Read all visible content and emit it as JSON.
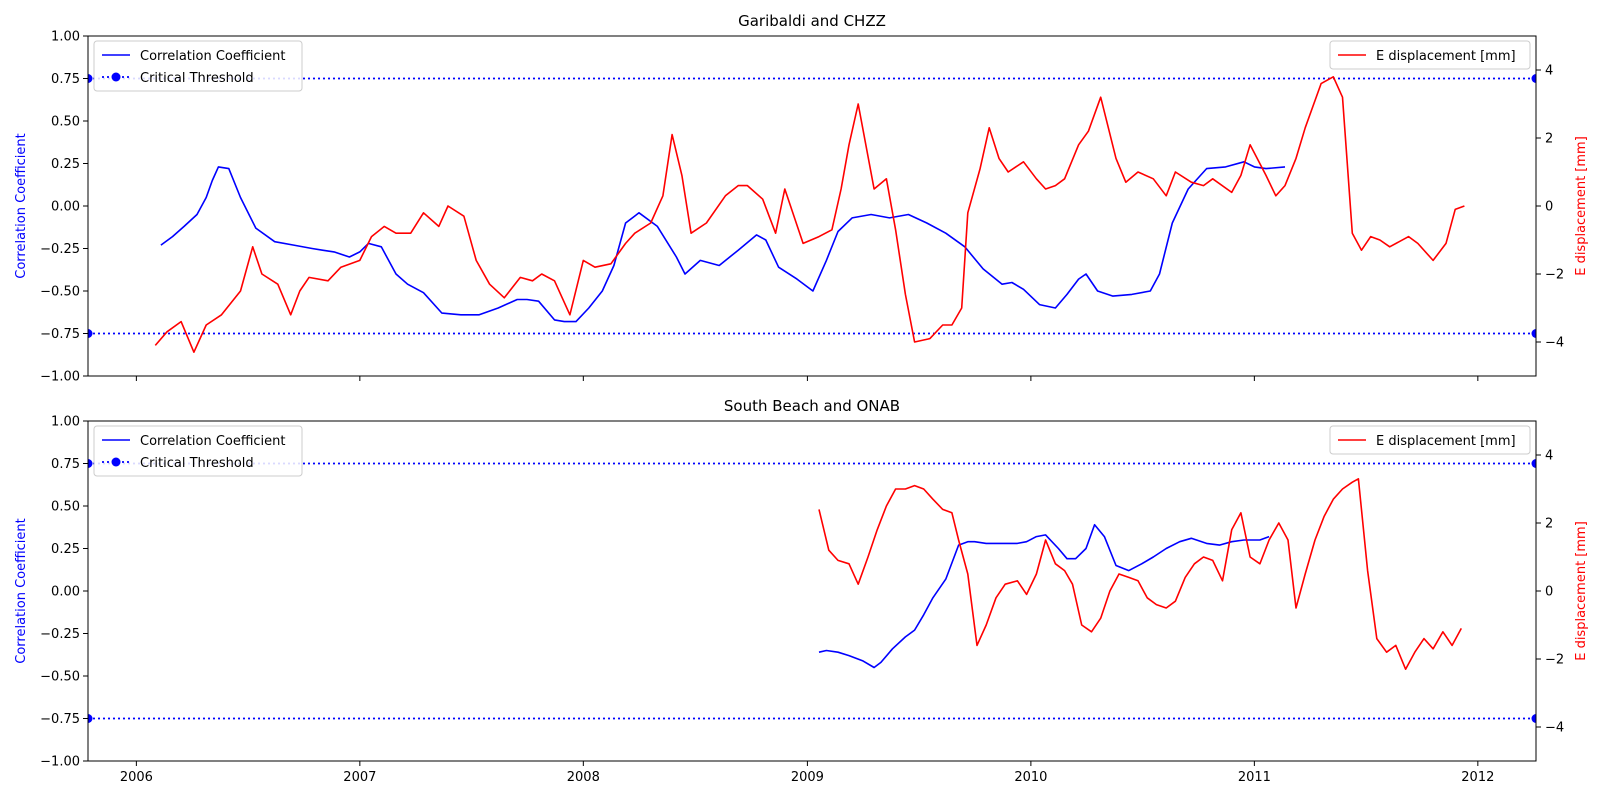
{
  "colors": {
    "correlation": "#0000ff",
    "displacement": "#ff0000",
    "threshold": "#0000ff",
    "axes": "#000000",
    "legend_border": "#cccccc"
  },
  "x_ticks": [
    {
      "date": "2006-01-01",
      "label": "2006"
    },
    {
      "date": "2007-01-01",
      "label": "2007"
    },
    {
      "date": "2008-01-01",
      "label": "2008"
    },
    {
      "date": "2009-01-01",
      "label": "2009"
    },
    {
      "date": "2010-01-01",
      "label": "2010"
    },
    {
      "date": "2011-01-01",
      "label": "2011"
    },
    {
      "date": "2012-01-01",
      "label": "2012"
    }
  ],
  "legend": {
    "left": [
      "Correlation Coefficient",
      "Critical Threshold"
    ],
    "right": [
      "E displacement [mm]"
    ]
  },
  "chart_data": [
    {
      "type": "line",
      "title": "Garibaldi and CHZZ",
      "xlim": [
        "2005-10-14",
        "2012-04-05"
      ],
      "ylabel_left": "Correlation Coefficient",
      "ylabel_right": "E displacement [mm]",
      "ylim_left": [
        -1.0,
        1.0
      ],
      "ylim_right": [
        -5,
        5
      ],
      "yticks_left": [
        "1.00",
        "0.75",
        "0.50",
        "0.25",
        "0.00",
        "−0.25",
        "−0.50",
        "−0.75",
        "−1.00"
      ],
      "yticks_right": [
        "4",
        "2",
        "0",
        "−2",
        "−4"
      ],
      "legend_left_position": "upper-left",
      "legend_right_position": "upper-right",
      "thresholds": [
        0.75,
        -0.75
      ],
      "series": [
        {
          "name": "Correlation Coefficient",
          "axis": "left",
          "x": [
            "2006-02-10",
            "2006-03-01",
            "2006-03-20",
            "2006-04-10",
            "2006-04-25",
            "2006-05-05",
            "2006-05-15",
            "2006-06-01",
            "2006-06-20",
            "2006-07-15",
            "2006-08-15",
            "2006-09-15",
            "2006-10-15",
            "2006-11-01",
            "2006-11-20",
            "2006-12-15",
            "2007-01-01",
            "2007-01-15",
            "2007-02-05",
            "2007-03-01",
            "2007-03-20",
            "2007-04-15",
            "2007-05-15",
            "2007-06-15",
            "2007-07-15",
            "2007-08-15",
            "2007-09-15",
            "2007-10-01",
            "2007-10-20",
            "2007-11-15",
            "2007-12-01",
            "2007-12-20",
            "2008-01-10",
            "2008-02-01",
            "2008-02-20",
            "2008-03-10",
            "2008-04-01",
            "2008-05-01",
            "2008-06-01",
            "2008-06-15",
            "2008-07-10",
            "2008-08-10",
            "2008-09-10",
            "2008-10-10",
            "2008-10-25",
            "2008-11-15",
            "2008-12-15",
            "2009-01-10",
            "2009-02-01",
            "2009-02-20",
            "2009-03-15",
            "2009-04-15",
            "2009-05-15",
            "2009-06-15",
            "2009-07-15",
            "2009-08-15",
            "2009-09-15",
            "2009-10-15",
            "2009-11-15",
            "2009-12-01",
            "2009-12-20",
            "2010-01-15",
            "2010-02-10",
            "2010-03-01",
            "2010-03-20",
            "2010-04-01",
            "2010-04-20",
            "2010-05-15",
            "2010-06-15",
            "2010-07-15",
            "2010-07-30",
            "2010-08-20",
            "2010-09-15",
            "2010-10-15",
            "2010-11-15",
            "2010-12-15",
            "2011-01-01",
            "2011-01-20",
            "2011-02-20"
          ],
          "y": [
            -0.23,
            -0.18,
            -0.12,
            -0.05,
            0.05,
            0.15,
            0.23,
            0.22,
            0.05,
            -0.13,
            -0.21,
            -0.23,
            -0.25,
            -0.26,
            -0.27,
            -0.3,
            -0.27,
            -0.22,
            -0.24,
            -0.4,
            -0.46,
            -0.51,
            -0.63,
            -0.64,
            -0.64,
            -0.6,
            -0.55,
            -0.55,
            -0.56,
            -0.67,
            -0.68,
            -0.68,
            -0.6,
            -0.5,
            -0.35,
            -0.1,
            -0.04,
            -0.12,
            -0.3,
            -0.4,
            -0.32,
            -0.35,
            -0.26,
            -0.17,
            -0.2,
            -0.36,
            -0.43,
            -0.5,
            -0.32,
            -0.15,
            -0.07,
            -0.05,
            -0.07,
            -0.05,
            -0.1,
            -0.16,
            -0.24,
            -0.37,
            -0.46,
            -0.45,
            -0.49,
            -0.58,
            -0.6,
            -0.52,
            -0.43,
            -0.4,
            -0.5,
            -0.53,
            -0.52,
            -0.5,
            -0.4,
            -0.1,
            0.1,
            0.22,
            0.23,
            0.26,
            0.23,
            0.22,
            0.23
          ]
        },
        {
          "name": "E displacement [mm]",
          "axis": "right",
          "x": [
            "2006-02-01",
            "2006-02-20",
            "2006-03-15",
            "2006-04-05",
            "2006-04-25",
            "2006-05-20",
            "2006-06-20",
            "2006-07-10",
            "2006-07-25",
            "2006-08-20",
            "2006-09-10",
            "2006-09-25",
            "2006-10-10",
            "2006-11-10",
            "2006-12-01",
            "2007-01-01",
            "2007-01-20",
            "2007-02-10",
            "2007-03-01",
            "2007-03-25",
            "2007-04-15",
            "2007-05-10",
            "2007-05-25",
            "2007-06-20",
            "2007-07-10",
            "2007-08-01",
            "2007-08-25",
            "2007-09-20",
            "2007-10-10",
            "2007-10-25",
            "2007-11-15",
            "2007-12-10",
            "2008-01-01",
            "2008-01-20",
            "2008-02-15",
            "2008-03-10",
            "2008-03-25",
            "2008-04-20",
            "2008-05-10",
            "2008-05-25",
            "2008-06-10",
            "2008-06-25",
            "2008-07-20",
            "2008-08-20",
            "2008-09-10",
            "2008-09-25",
            "2008-10-20",
            "2008-11-10",
            "2008-11-25",
            "2008-12-25",
            "2009-01-20",
            "2009-02-10",
            "2009-02-25",
            "2009-03-10",
            "2009-03-25",
            "2009-04-20",
            "2009-05-10",
            "2009-05-25",
            "2009-06-10",
            "2009-06-25",
            "2009-07-20",
            "2009-08-10",
            "2009-08-25",
            "2009-09-10",
            "2009-09-20",
            "2009-10-10",
            "2009-10-25",
            "2009-11-10",
            "2009-11-25",
            "2009-12-20",
            "2010-01-10",
            "2010-01-25",
            "2010-02-10",
            "2010-02-25",
            "2010-03-20",
            "2010-04-05",
            "2010-04-25",
            "2010-05-20",
            "2010-06-05",
            "2010-06-25",
            "2010-07-20",
            "2010-08-10",
            "2010-08-25",
            "2010-09-20",
            "2010-10-10",
            "2010-10-25",
            "2010-11-25",
            "2010-12-10",
            "2010-12-25",
            "2011-01-20",
            "2011-02-05",
            "2011-02-20",
            "2011-03-10",
            "2011-03-25",
            "2011-04-20",
            "2011-05-10",
            "2011-05-25",
            "2011-06-10",
            "2011-06-25",
            "2011-07-10",
            "2011-07-25",
            "2011-08-10",
            "2011-09-10",
            "2011-09-25",
            "2011-10-20",
            "2011-11-10",
            "2011-11-25",
            "2011-12-10"
          ],
          "y": [
            -4.1,
            -3.7,
            -3.4,
            -4.3,
            -3.5,
            -3.2,
            -2.5,
            -1.2,
            -2.0,
            -2.3,
            -3.2,
            -2.5,
            -2.1,
            -2.2,
            -1.8,
            -1.6,
            -0.9,
            -0.6,
            -0.8,
            -0.8,
            -0.2,
            -0.6,
            0.0,
            -0.3,
            -1.6,
            -2.3,
            -2.7,
            -2.1,
            -2.2,
            -2.0,
            -2.2,
            -3.2,
            -1.6,
            -1.8,
            -1.7,
            -1.1,
            -0.8,
            -0.5,
            0.3,
            2.1,
            0.9,
            -0.8,
            -0.5,
            0.3,
            0.6,
            0.6,
            0.2,
            -0.8,
            0.5,
            -1.1,
            -0.9,
            -0.7,
            0.5,
            1.8,
            3.0,
            0.5,
            0.8,
            -0.7,
            -2.6,
            -4.0,
            -3.9,
            -3.5,
            -3.5,
            -3.0,
            -0.2,
            1.1,
            2.3,
            1.4,
            1.0,
            1.3,
            0.8,
            0.5,
            0.6,
            0.8,
            1.8,
            2.2,
            3.2,
            1.4,
            0.7,
            1.0,
            0.8,
            0.3,
            1.0,
            0.7,
            0.6,
            0.8,
            0.4,
            0.9,
            1.8,
            0.9,
            0.3,
            0.6,
            1.4,
            2.3,
            3.6,
            3.8,
            3.2,
            -0.8,
            -1.3,
            -0.9,
            -1.0,
            -1.2,
            -0.9,
            -1.1,
            -1.6,
            -1.1,
            -0.1,
            0.0
          ]
        }
      ]
    },
    {
      "type": "line",
      "title": "South Beach and ONAB",
      "xlim": [
        "2005-10-14",
        "2012-04-05"
      ],
      "ylabel_left": "Correlation Coefficient",
      "ylabel_right": "E displacement [mm]",
      "ylim_left": [
        -1.0,
        1.0
      ],
      "ylim_right": [
        -5,
        5
      ],
      "yticks_left": [
        "1.00",
        "0.75",
        "0.50",
        "0.25",
        "0.00",
        "−0.25",
        "−0.50",
        "−0.75",
        "−1.00"
      ],
      "yticks_right": [
        "4",
        "2",
        "0",
        "−2",
        "−4"
      ],
      "legend_left_position": "upper-left",
      "legend_right_position": "upper-right",
      "thresholds": [
        0.75,
        -0.75
      ],
      "series": [
        {
          "name": "Correlation Coefficient",
          "axis": "left",
          "x": [
            "2009-01-20",
            "2009-02-01",
            "2009-02-20",
            "2009-03-10",
            "2009-04-01",
            "2009-04-20",
            "2009-05-01",
            "2009-05-20",
            "2009-06-10",
            "2009-06-25",
            "2009-07-10",
            "2009-07-25",
            "2009-08-15",
            "2009-09-05",
            "2009-09-20",
            "2009-10-01",
            "2009-10-20",
            "2009-11-15",
            "2009-12-10",
            "2009-12-25",
            "2010-01-10",
            "2010-01-25",
            "2010-02-15",
            "2010-03-01",
            "2010-03-15",
            "2010-04-01",
            "2010-04-15",
            "2010-05-01",
            "2010-05-20",
            "2010-06-10",
            "2010-07-01",
            "2010-07-20",
            "2010-08-10",
            "2010-09-01",
            "2010-09-20",
            "2010-10-15",
            "2010-11-05",
            "2010-11-25",
            "2010-12-15",
            "2011-01-10",
            "2011-01-25"
          ],
          "y": [
            -0.36,
            -0.35,
            -0.36,
            -0.38,
            -0.41,
            -0.45,
            -0.42,
            -0.34,
            -0.27,
            -0.23,
            -0.14,
            -0.04,
            0.07,
            0.27,
            0.29,
            0.29,
            0.28,
            0.28,
            0.28,
            0.29,
            0.32,
            0.33,
            0.25,
            0.19,
            0.19,
            0.25,
            0.39,
            0.32,
            0.15,
            0.12,
            0.16,
            0.2,
            0.25,
            0.29,
            0.31,
            0.28,
            0.27,
            0.29,
            0.3,
            0.3,
            0.32
          ]
        },
        {
          "name": "E displacement [mm]",
          "axis": "right",
          "x": [
            "2009-01-20",
            "2009-02-05",
            "2009-02-20",
            "2009-03-10",
            "2009-03-25",
            "2009-04-10",
            "2009-04-25",
            "2009-05-10",
            "2009-05-25",
            "2009-06-10",
            "2009-06-25",
            "2009-07-10",
            "2009-07-25",
            "2009-08-10",
            "2009-08-25",
            "2009-09-05",
            "2009-09-20",
            "2009-10-05",
            "2009-10-20",
            "2009-11-05",
            "2009-11-20",
            "2009-12-10",
            "2009-12-25",
            "2010-01-10",
            "2010-01-25",
            "2010-02-10",
            "2010-02-25",
            "2010-03-10",
            "2010-03-25",
            "2010-04-10",
            "2010-04-25",
            "2010-05-10",
            "2010-05-25",
            "2010-06-10",
            "2010-06-25",
            "2010-07-10",
            "2010-07-25",
            "2010-08-10",
            "2010-08-25",
            "2010-09-10",
            "2010-09-25",
            "2010-10-10",
            "2010-10-25",
            "2010-11-10",
            "2010-11-25",
            "2010-12-10",
            "2010-12-25",
            "2011-01-10",
            "2011-01-25",
            "2011-02-10",
            "2011-02-25",
            "2011-03-10",
            "2011-03-25",
            "2011-04-10",
            "2011-04-25",
            "2011-05-10",
            "2011-05-25",
            "2011-06-10",
            "2011-06-20",
            "2011-07-05",
            "2011-07-20",
            "2011-08-05",
            "2011-08-20",
            "2011-09-05",
            "2011-09-20",
            "2011-10-05",
            "2011-10-20",
            "2011-11-05",
            "2011-11-20",
            "2011-12-05"
          ],
          "y": [
            2.4,
            1.2,
            0.9,
            0.8,
            0.2,
            1.0,
            1.8,
            2.5,
            3.0,
            3.0,
            3.1,
            3.0,
            2.7,
            2.4,
            2.3,
            1.5,
            0.5,
            -1.6,
            -1.0,
            -0.2,
            0.2,
            0.3,
            -0.1,
            0.5,
            1.5,
            0.8,
            0.6,
            0.2,
            -1.0,
            -1.2,
            -0.8,
            0.0,
            0.5,
            0.4,
            0.3,
            -0.2,
            -0.4,
            -0.5,
            -0.3,
            0.4,
            0.8,
            1.0,
            0.9,
            0.3,
            1.8,
            2.3,
            1.0,
            0.8,
            1.5,
            2.0,
            1.5,
            -0.5,
            0.5,
            1.5,
            2.2,
            2.7,
            3.0,
            3.2,
            3.3,
            0.6,
            -1.4,
            -1.8,
            -1.6,
            -2.3,
            -1.8,
            -1.4,
            -1.7,
            -1.2,
            -1.6,
            -1.1
          ]
        }
      ]
    }
  ]
}
